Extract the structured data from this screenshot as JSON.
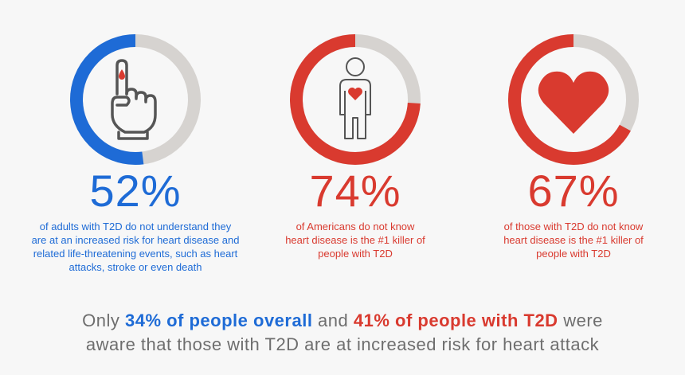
{
  "stats": [
    {
      "percent_label": "52%",
      "value": 52,
      "color": "#1e6bd6",
      "icon": "raised-finger-blood-drop-icon",
      "caption_lines": [
        "of adults with T2D do not understand they",
        "are at an increased risk for heart disease and",
        "related life-threatening events, such as heart",
        "attacks, stroke or even death"
      ]
    },
    {
      "percent_label": "74%",
      "value": 74,
      "color": "#d93a2f",
      "icon": "person-heart-icon",
      "caption_lines": [
        "of Americans do not know",
        "heart disease is the #1 killer of",
        "people with T2D"
      ]
    },
    {
      "percent_label": "67%",
      "value": 67,
      "color": "#d93a2f",
      "icon": "heart-icon",
      "caption_lines": [
        "of those with T2D do not know",
        "heart disease is the #1 killer of",
        "people with T2D"
      ]
    }
  ],
  "ring_track_color": "#d6d3d0",
  "summary": {
    "line1_prefix": "Only ",
    "line1_blue": "34% of people overall",
    "line1_middle": " and ",
    "line1_red": "41% of people with T2D",
    "line1_suffix": " were",
    "line2": "aware that those with T2D are at increased risk for heart attack"
  }
}
